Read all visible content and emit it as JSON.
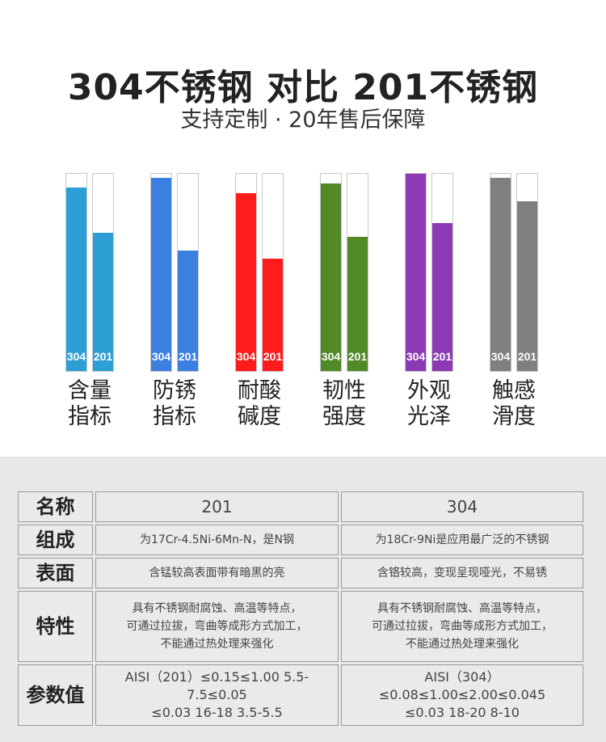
{
  "header": {
    "title": "304不锈钢 对比 201不锈钢",
    "subtitle": "支持定制 · 20年售后保障"
  },
  "chart_data": {
    "type": "bar",
    "categories": [
      "含量指标",
      "防锈指标",
      "耐酸碱度",
      "韧性强度",
      "外观光泽",
      "触感滑度"
    ],
    "category_lines": [
      [
        "含量",
        "指标"
      ],
      [
        "防锈",
        "指标"
      ],
      [
        "耐酸",
        "碱度"
      ],
      [
        "韧性",
        "强度"
      ],
      [
        "外观",
        "光泽"
      ],
      [
        "触感",
        "滑度"
      ]
    ],
    "series": [
      {
        "name": "304",
        "values": [
          0.93,
          0.98,
          0.9,
          0.95,
          1.0,
          0.98
        ]
      },
      {
        "name": "201",
        "values": [
          0.7,
          0.61,
          0.57,
          0.68,
          0.75,
          0.86
        ]
      }
    ],
    "colors": [
      "#2e9fd4",
      "#3b7fe0",
      "#ff1c1c",
      "#4f8a26",
      "#8b3ab3",
      "#7f7f7f"
    ],
    "ylim": [
      0,
      1
    ],
    "title": "",
    "xlabel": "",
    "ylabel": ""
  },
  "table": {
    "header": [
      "名称",
      "201",
      "304"
    ],
    "rows": [
      {
        "label": "组成",
        "c201": [
          "为17Cr-4.5Ni-6Mn-N，是N钢"
        ],
        "c304": [
          "为18Cr-9Ni是应用最广泛的不锈钢"
        ]
      },
      {
        "label": "表面",
        "c201": [
          "含锰较高表面带有暗黑的亮"
        ],
        "c304": [
          "含铬较高，变现呈现哑光，不易锈"
        ]
      },
      {
        "label": "特性",
        "c201": [
          "具有不锈钢耐腐蚀、高温等特点，",
          "可通过拉拔，弯曲等成形方式加工，",
          "不能通过热处理来强化"
        ],
        "c304": [
          "具有不锈钢耐腐蚀、高温等特点，",
          "可通过拉拔，弯曲等成形方式加工，",
          "不能通过热处理来强化"
        ]
      },
      {
        "label": "参数值",
        "c201": [
          "AISI（201）≤0.15≤1.00 5.5-7.5≤0.05",
          "≤0.03 16-18 3.5-5.5"
        ],
        "c304": [
          "AISI（304）≤0.08≤1.00≤2.00≤0.045",
          "≤0.03 18-20 8-10"
        ]
      }
    ]
  }
}
